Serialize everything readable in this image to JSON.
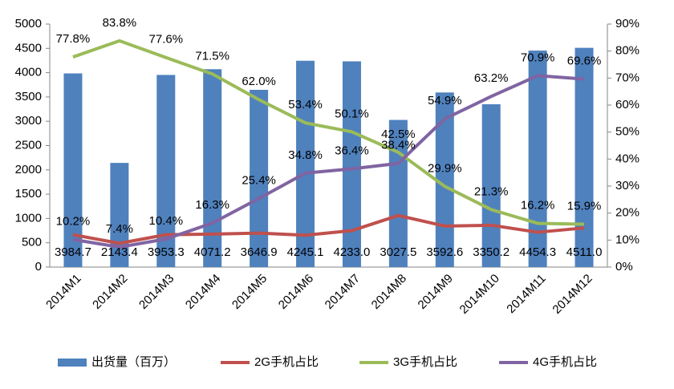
{
  "chart_data": {
    "type": "bar",
    "categories": [
      "2014M1",
      "2014M2",
      "2014M3",
      "2014M4",
      "2014M5",
      "2014M6",
      "2014M7",
      "2014M8",
      "2014M9",
      "2014M10",
      "2014M11",
      "2014M12"
    ],
    "ylim": [
      0,
      5000
    ],
    "yticks": [
      0,
      500,
      1000,
      1500,
      2000,
      2500,
      3000,
      3500,
      4000,
      4500,
      5000
    ],
    "y2lim": [
      0,
      90
    ],
    "y2ticks": [
      {
        "value": 0,
        "label": "0%"
      },
      {
        "value": 10,
        "label": "10%"
      },
      {
        "value": 20,
        "label": "20%"
      },
      {
        "value": 30,
        "label": "30%"
      },
      {
        "value": 40,
        "label": "40%"
      },
      {
        "value": 50,
        "label": "50%"
      },
      {
        "value": 60,
        "label": "60%"
      },
      {
        "value": 70,
        "label": "70%"
      },
      {
        "value": 80,
        "label": "80%"
      },
      {
        "value": 90,
        "label": "90%"
      }
    ],
    "legend": "bottom",
    "series": [
      {
        "name": "出货量（百万）",
        "type": "bar",
        "color": "#4f81bd",
        "values": [
          3984.7,
          2143.4,
          3953.3,
          4071.2,
          3646.9,
          4245.1,
          4233.0,
          3027.5,
          3592.6,
          3350.2,
          4454.3,
          4511.0
        ],
        "value_labels": [
          "3984.7",
          "2143.4",
          "3953.3",
          "4071.2",
          "3646.9",
          "4245.1",
          "4233.0",
          "3027.5",
          "3592.6",
          "3350.2",
          "4454.3",
          "4511.0"
        ]
      },
      {
        "name": "2G手机占比",
        "type": "line",
        "axis": "y2",
        "color": "#c0504d",
        "values": [
          12.0,
          8.8,
          12.0,
          12.2,
          12.6,
          11.8,
          13.5,
          19.1,
          15.2,
          15.5,
          12.9,
          14.5
        ]
      },
      {
        "name": "3G手机占比",
        "type": "line",
        "axis": "y2",
        "color": "#9bbb59",
        "values": [
          77.8,
          83.8,
          77.6,
          71.5,
          62.0,
          53.4,
          50.1,
          42.5,
          29.9,
          21.3,
          16.2,
          15.9
        ],
        "value_labels": [
          "77.8%",
          "83.8%",
          "77.6%",
          "71.5%",
          "62.0%",
          "53.4%",
          "50.1%",
          "42.5%",
          "29.9%",
          "21.3%",
          "16.2%",
          "15.9%"
        ]
      },
      {
        "name": "4G手机占比",
        "type": "line",
        "axis": "y2",
        "color": "#8064a2",
        "values": [
          10.2,
          7.4,
          10.4,
          16.3,
          25.4,
          34.8,
          36.4,
          38.4,
          54.9,
          63.2,
          70.9,
          69.6
        ],
        "value_labels": [
          "10.2%",
          "7.4%",
          "10.4%",
          "16.3%",
          "25.4%",
          "34.8%",
          "36.4%",
          "38.4%",
          "54.9%",
          "63.2%",
          "70.9%",
          "69.6%"
        ]
      }
    ]
  }
}
